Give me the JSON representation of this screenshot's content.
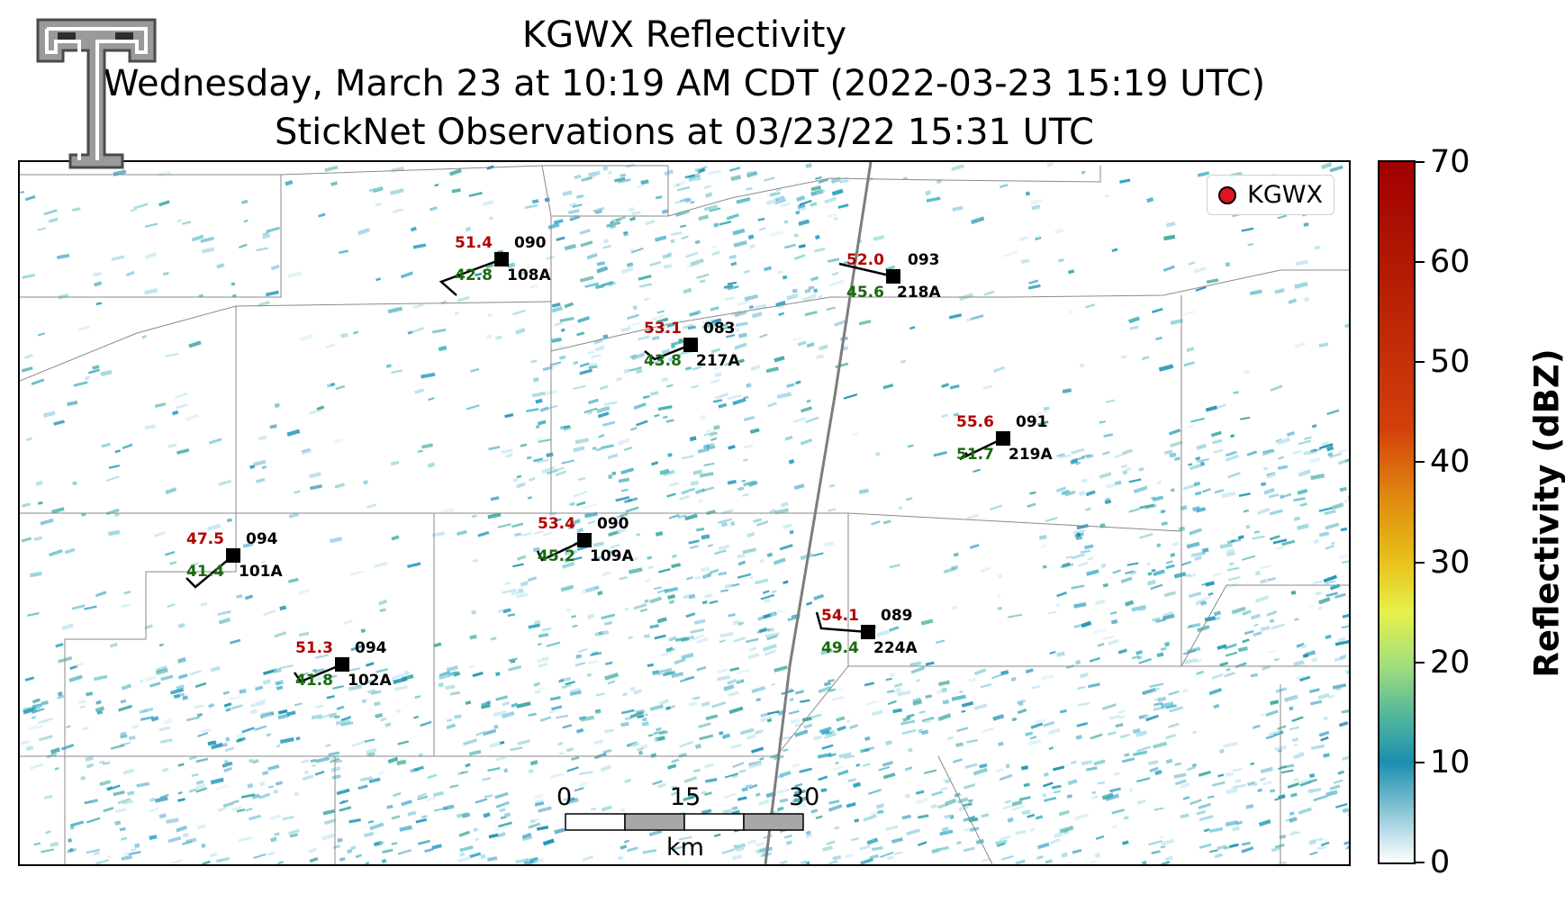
{
  "title": {
    "line1": "KGWX Reflectivity",
    "line2": "Wednesday, March 23 at 10:19 AM CDT (2022-03-23 15:19 UTC)",
    "line3": "StickNet Observations at 03/23/22 15:31 UTC"
  },
  "legend": {
    "label": "KGWX",
    "marker_color": "#e0141e"
  },
  "colorbar": {
    "label": "Reflectivity (dBZ)",
    "min": 0,
    "max": 70,
    "ticks": [
      "0",
      "10",
      "20",
      "30",
      "40",
      "50",
      "60",
      "70"
    ]
  },
  "scale_bar": {
    "ticks": [
      "0",
      "15",
      "30"
    ],
    "unit": "km"
  },
  "logo": {
    "name": "texas-tech-double-t-logo"
  },
  "stations": [
    {
      "id": "108A",
      "temp": "51.4",
      "dewpoint": "42.8",
      "direction": "090"
    },
    {
      "id": "093",
      "temp": "52.0",
      "dewpoint": "45.6",
      "direction": "093",
      "id_label": "218A"
    },
    {
      "id": "217A",
      "temp": "53.1",
      "dewpoint": "43.8",
      "direction": "083"
    },
    {
      "id": "219A",
      "temp": "55.6",
      "dewpoint": "51.7",
      "direction": "091"
    },
    {
      "id": "101A",
      "temp": "47.5",
      "dewpoint": "41.4",
      "direction": "094"
    },
    {
      "id": "109A",
      "temp": "53.4",
      "dewpoint": "45.2",
      "direction": "090"
    },
    {
      "id": "224A",
      "temp": "54.1",
      "dewpoint": "49.4",
      "direction": "089"
    },
    {
      "id": "102A",
      "temp": "51.3",
      "dewpoint": "41.8",
      "direction": "094"
    }
  ],
  "colors": {
    "temp": "#b40000",
    "dewpoint": "#1a6a10",
    "echo": "#1b8fb0"
  }
}
